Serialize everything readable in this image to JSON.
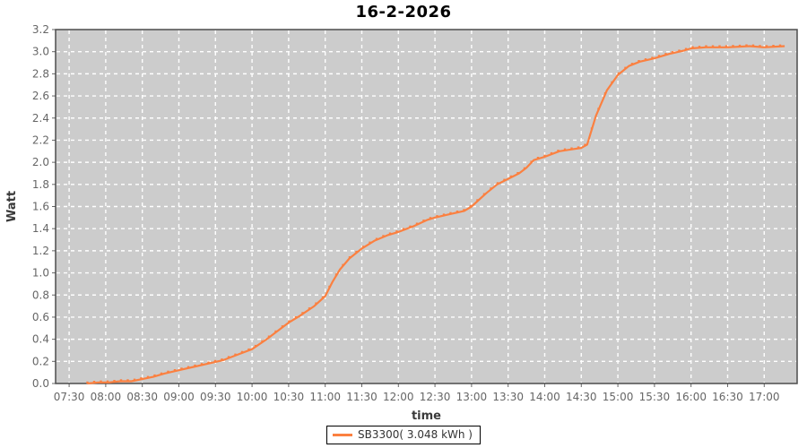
{
  "title": "16-2-2026",
  "chart_data": {
    "type": "line",
    "title": "16-2-2026",
    "xlabel": "time",
    "ylabel": "Watt",
    "ylim": [
      0.0,
      3.2
    ],
    "y_tick_step": 0.2,
    "x_ticks": [
      "07:30",
      "08:00",
      "08:30",
      "09:00",
      "09:30",
      "10:00",
      "10:30",
      "11:00",
      "11:30",
      "12:00",
      "12:30",
      "13:00",
      "13:30",
      "14:00",
      "14:30",
      "15:00",
      "15:30",
      "16:00",
      "16:30",
      "17:00"
    ],
    "x_tick_hours": [
      7.5,
      8.0,
      8.5,
      9.0,
      9.5,
      10.0,
      10.5,
      11.0,
      11.5,
      12.0,
      12.5,
      13.0,
      13.5,
      14.0,
      14.5,
      15.0,
      15.5,
      16.0,
      16.5,
      17.0
    ],
    "x_range_hours": [
      7.315,
      17.45
    ],
    "grid": {
      "shown": true,
      "style": "dashed",
      "color": "#ffffff"
    },
    "plot_background": "#cccccc",
    "plot_border_color": "#4d4d4d",
    "tick_label_color": "#666666",
    "axis_label_color": "#3a3a3a",
    "legend": {
      "position": "bottom-center",
      "entries": [
        {
          "label": "SB3300( 3.048 kWh )",
          "color": "#fb8040"
        }
      ]
    },
    "series": [
      {
        "name": "SB3300( 3.048 kWh )",
        "color": "#fb8040",
        "final_value_kwh": 3.048,
        "points_time_kwh": [
          [
            7.75,
            0.0
          ],
          [
            7.9,
            0.01
          ],
          [
            8.05,
            0.01
          ],
          [
            8.2,
            0.02
          ],
          [
            8.35,
            0.02
          ],
          [
            8.5,
            0.04
          ],
          [
            8.65,
            0.06
          ],
          [
            8.8,
            0.09
          ],
          [
            9.0,
            0.12
          ],
          [
            9.2,
            0.15
          ],
          [
            9.4,
            0.18
          ],
          [
            9.6,
            0.21
          ],
          [
            9.8,
            0.26
          ],
          [
            10.0,
            0.31
          ],
          [
            10.2,
            0.4
          ],
          [
            10.4,
            0.5
          ],
          [
            10.5,
            0.55
          ],
          [
            10.65,
            0.61
          ],
          [
            10.85,
            0.7
          ],
          [
            11.0,
            0.79
          ],
          [
            11.1,
            0.92
          ],
          [
            11.2,
            1.03
          ],
          [
            11.33,
            1.13
          ],
          [
            11.5,
            1.22
          ],
          [
            11.67,
            1.29
          ],
          [
            11.85,
            1.34
          ],
          [
            12.0,
            1.37
          ],
          [
            12.2,
            1.42
          ],
          [
            12.4,
            1.48
          ],
          [
            12.5,
            1.5
          ],
          [
            12.7,
            1.53
          ],
          [
            12.9,
            1.56
          ],
          [
            13.0,
            1.6
          ],
          [
            13.2,
            1.72
          ],
          [
            13.35,
            1.8
          ],
          [
            13.5,
            1.85
          ],
          [
            13.65,
            1.9
          ],
          [
            13.75,
            1.95
          ],
          [
            13.85,
            2.02
          ],
          [
            14.0,
            2.05
          ],
          [
            14.2,
            2.1
          ],
          [
            14.4,
            2.12
          ],
          [
            14.5,
            2.13
          ],
          [
            14.58,
            2.16
          ],
          [
            14.7,
            2.42
          ],
          [
            14.85,
            2.65
          ],
          [
            15.0,
            2.79
          ],
          [
            15.15,
            2.87
          ],
          [
            15.3,
            2.91
          ],
          [
            15.5,
            2.94
          ],
          [
            15.7,
            2.98
          ],
          [
            15.9,
            3.01
          ],
          [
            16.0,
            3.03
          ],
          [
            16.2,
            3.04
          ],
          [
            16.5,
            3.04
          ],
          [
            16.8,
            3.05
          ],
          [
            17.0,
            3.04
          ],
          [
            17.28,
            3.05
          ]
        ]
      }
    ]
  }
}
